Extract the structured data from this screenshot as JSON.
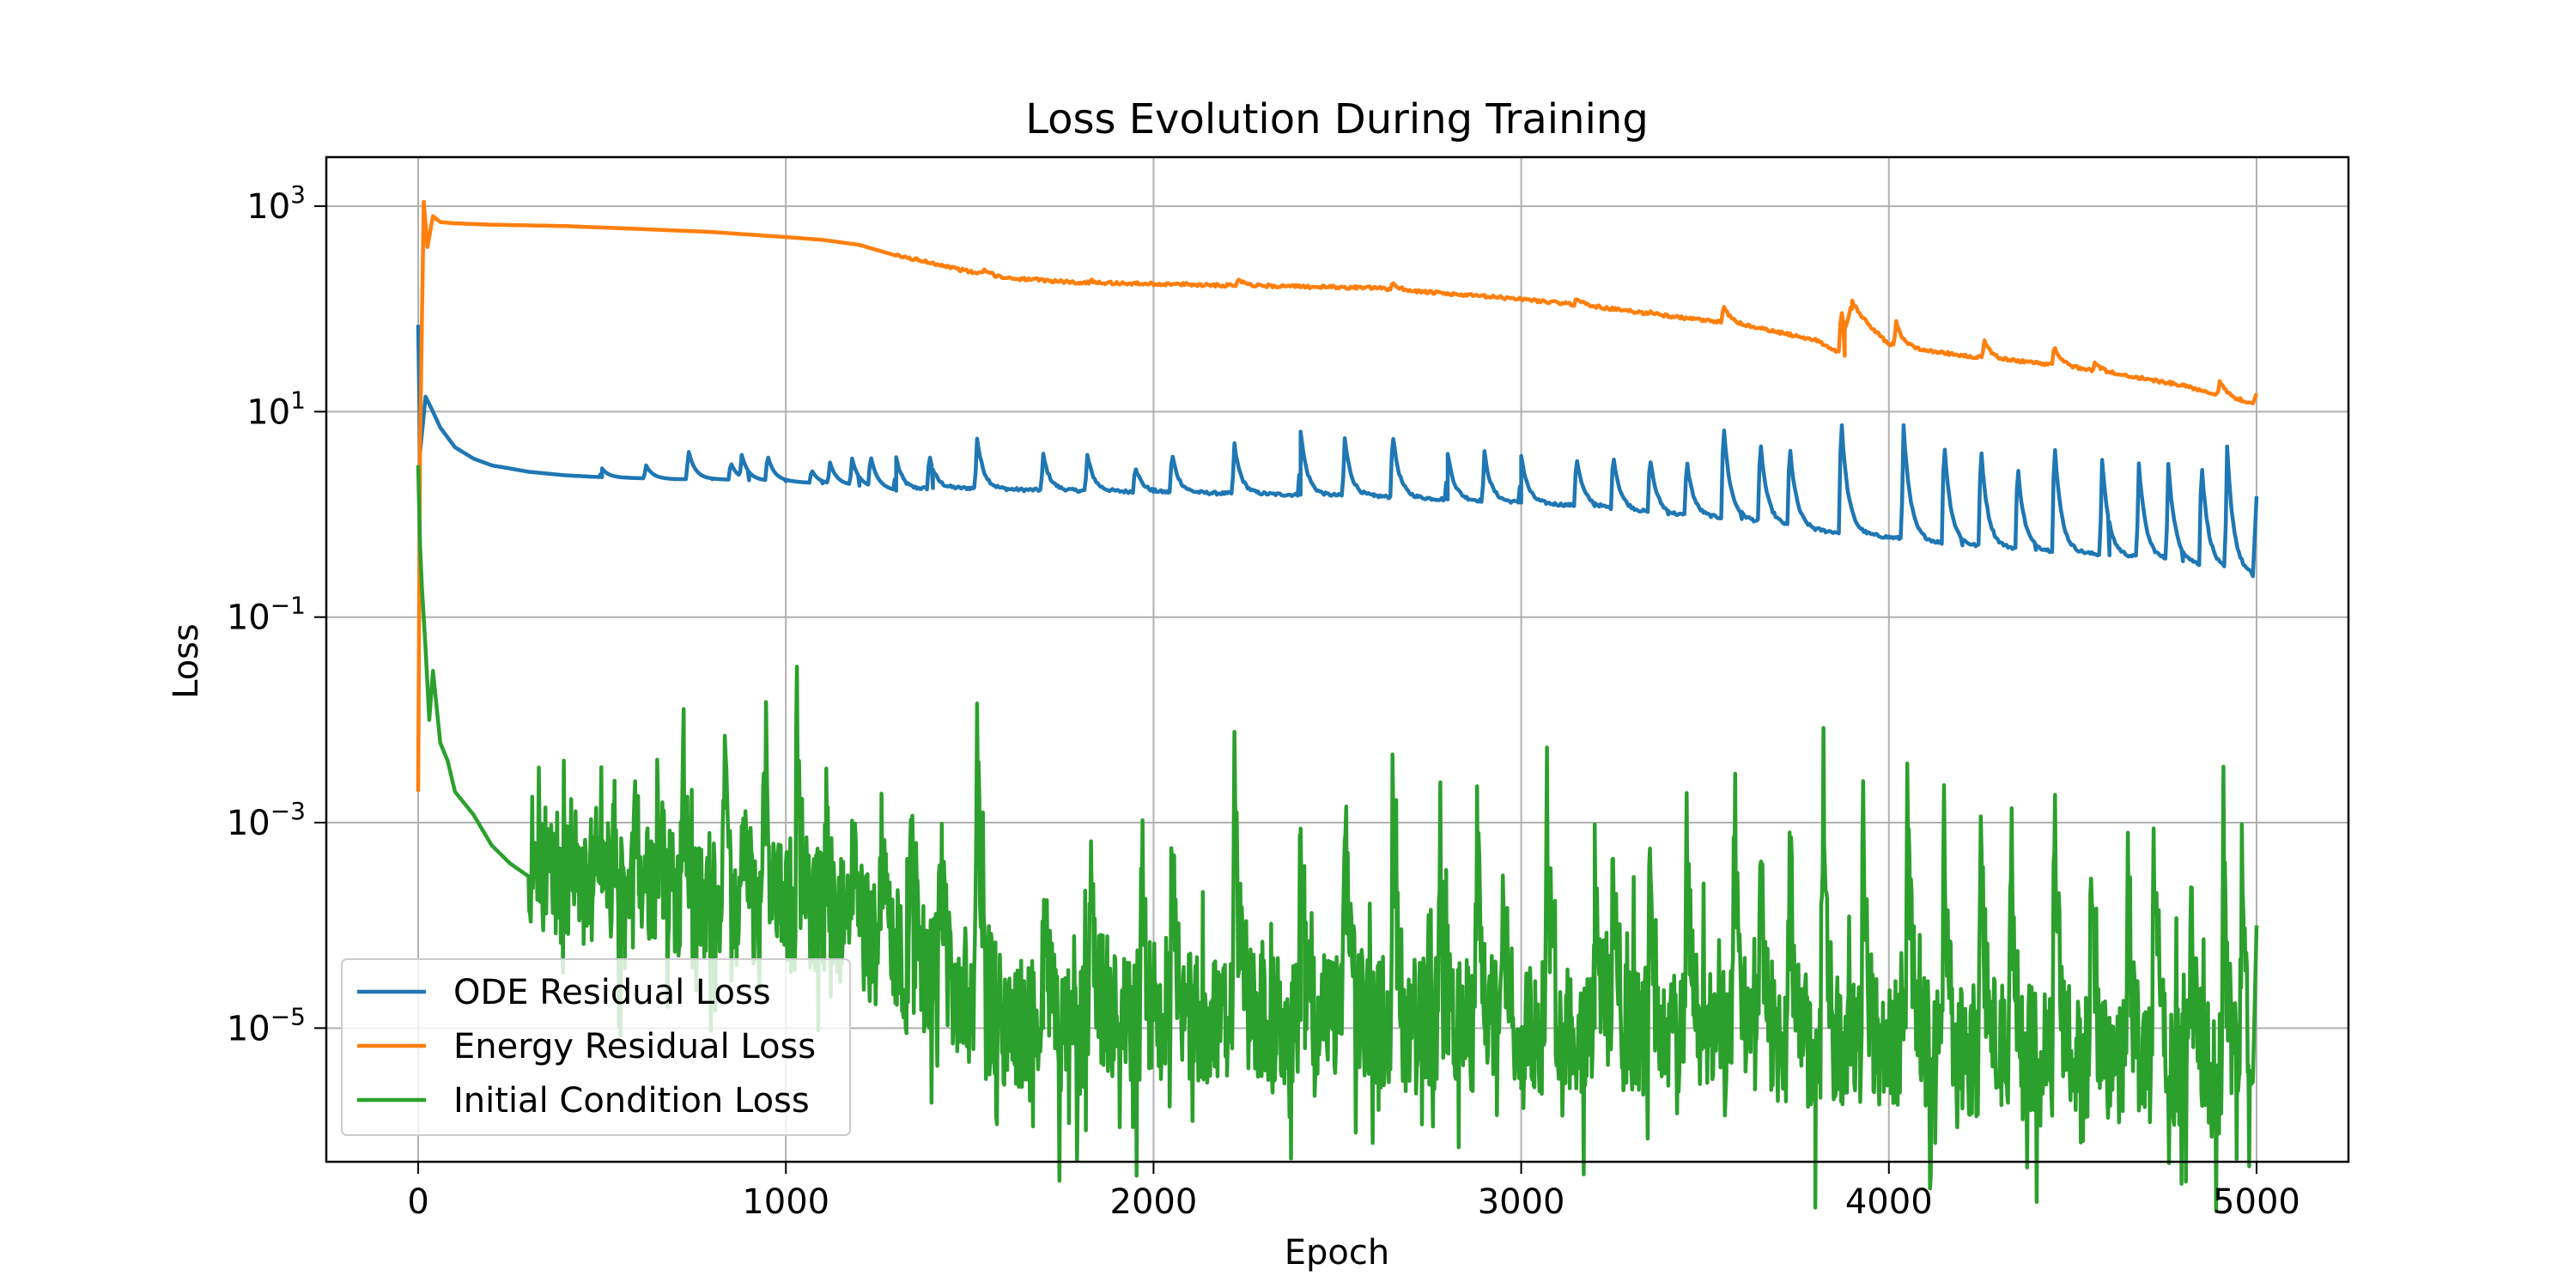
{
  "chart_data": {
    "type": "line",
    "title": "Loss Evolution During Training",
    "xlabel": "Epoch",
    "ylabel": "Loss",
    "xlim": [
      -250,
      5250
    ],
    "ylim": [
      5e-07,
      3000
    ],
    "yscale": "log",
    "grid": true,
    "legend_position": "lower-left",
    "x_ticks": [
      0,
      1000,
      2000,
      3000,
      4000,
      5000
    ],
    "x_tick_labels": [
      "0",
      "1000",
      "2000",
      "3000",
      "4000",
      "5000"
    ],
    "y_ticks": [
      1e-05,
      0.001,
      0.1,
      10,
      1000
    ],
    "y_tick_labels": [
      {
        "base": "10",
        "exp": "−5"
      },
      {
        "base": "10",
        "exp": "−3"
      },
      {
        "base": "10",
        "exp": "−1"
      },
      {
        "base": "10",
        "exp": "1"
      },
      {
        "base": "10",
        "exp": "3"
      }
    ],
    "series": [
      {
        "name": "ODE Residual Loss",
        "color": "#1f77b4",
        "x": [
          0,
          5,
          20,
          40,
          60,
          100,
          150,
          200,
          300,
          400,
          500,
          600,
          700,
          800,
          900,
          1000,
          1100,
          1200,
          1300,
          1400,
          1500,
          1600,
          1800,
          2000,
          2200,
          2400,
          2600,
          2800,
          3000,
          3200,
          3400,
          3600,
          3800,
          4000,
          4200,
          4400,
          4600,
          4800,
          4990,
          5000
        ],
        "y": [
          70,
          4,
          14,
          10,
          7,
          4.5,
          3.5,
          3.0,
          2.6,
          2.4,
          2.3,
          2.25,
          2.2,
          2.2,
          2.15,
          2.1,
          2.0,
          1.9,
          1.7,
          1.8,
          1.8,
          1.75,
          1.7,
          1.65,
          1.6,
          1.55,
          1.5,
          1.4,
          1.3,
          1.2,
          1.0,
          0.9,
          0.7,
          0.6,
          0.5,
          0.45,
          0.4,
          0.35,
          0.25,
          1.5
        ],
        "spikes": [
          [
            500,
            2.8
          ],
          [
            620,
            3.0
          ],
          [
            735,
            4.2
          ],
          [
            850,
            3.2
          ],
          [
            880,
            3.8
          ],
          [
            950,
            3.8
          ],
          [
            1070,
            2.7
          ],
          [
            1120,
            3.2
          ],
          [
            1180,
            3.5
          ],
          [
            1230,
            3.8
          ],
          [
            1300,
            3.6
          ],
          [
            1390,
            3.8
          ],
          [
            1520,
            5.5
          ],
          [
            1700,
            3.8
          ],
          [
            1820,
            3.8
          ],
          [
            1950,
            3.0
          ],
          [
            2050,
            4.0
          ],
          [
            2220,
            4.8
          ],
          [
            2400,
            6.5
          ],
          [
            2520,
            5.5
          ],
          [
            2650,
            6.5
          ],
          [
            2800,
            4.0
          ],
          [
            2900,
            4.0
          ],
          [
            3000,
            3.8
          ],
          [
            3150,
            3.8
          ],
          [
            3250,
            4.0
          ],
          [
            3350,
            3.8
          ],
          [
            3450,
            3.5
          ],
          [
            3550,
            8.0
          ],
          [
            3650,
            5.5
          ],
          [
            3730,
            5.0
          ],
          [
            3870,
            9.5
          ],
          [
            4040,
            7.5
          ],
          [
            4150,
            5.5
          ],
          [
            4250,
            5.0
          ],
          [
            4350,
            3.2
          ],
          [
            4450,
            5.5
          ],
          [
            4580,
            3.5
          ],
          [
            4680,
            3.2
          ],
          [
            4760,
            3.2
          ],
          [
            4850,
            3.5
          ],
          [
            4920,
            4.5
          ],
          [
            4990,
            1.8
          ]
        ]
      },
      {
        "name": "Energy Residual Loss",
        "color": "#ff7f0e",
        "x": [
          0,
          5,
          15,
          25,
          40,
          60,
          100,
          200,
          400,
          600,
          800,
          1000,
          1100,
          1200,
          1300,
          1400,
          1500,
          1600,
          1800,
          2000,
          2200,
          2400,
          2600,
          2800,
          3000,
          3200,
          3400,
          3600,
          3800,
          3880,
          3900,
          4000,
          4200,
          4400,
          4600,
          4800,
          4990,
          5000
        ],
        "y": [
          0.002,
          5,
          1100,
          400,
          800,
          700,
          680,
          660,
          640,
          600,
          560,
          500,
          470,
          420,
          330,
          280,
          230,
          200,
          180,
          175,
          170,
          165,
          160,
          140,
          125,
          105,
          85,
          70,
          50,
          35,
          100,
          45,
          35,
          30,
          24,
          18,
          12,
          15
        ],
        "spikes": [
          [
            1540,
            240
          ],
          [
            1830,
            190
          ],
          [
            2230,
            200
          ],
          [
            2650,
            180
          ],
          [
            3150,
            130
          ],
          [
            3350,
            95
          ],
          [
            3550,
            110
          ],
          [
            3870,
            100
          ],
          [
            4020,
            75
          ],
          [
            4260,
            50
          ],
          [
            4450,
            45
          ],
          [
            4560,
            30
          ],
          [
            4900,
            20
          ]
        ]
      },
      {
        "name": "Initial Condition Loss",
        "color": "#2ca02c",
        "x": [
          0,
          5,
          10,
          20,
          30,
          40,
          60,
          80,
          100,
          150,
          200,
          250,
          300,
          400,
          500,
          600,
          700,
          800,
          900,
          1000,
          1100,
          1200,
          1300,
          1400,
          1500,
          1600,
          1700,
          1800,
          1900,
          2000,
          2100,
          2200,
          2300,
          2400,
          2500,
          2600,
          2700,
          2800,
          2900,
          3000,
          3200,
          3400,
          3600,
          3800,
          4000,
          4200,
          4400,
          4600,
          4800,
          4990,
          5000
        ],
        "y": [
          3,
          0.5,
          0.2,
          0.05,
          0.01,
          0.03,
          0.006,
          0.004,
          0.002,
          0.0012,
          0.0006,
          0.0004,
          0.0003,
          0.00028,
          0.00025,
          0.0002,
          0.00018,
          0.00016,
          0.00015,
          0.00018,
          0.00012,
          8e-05,
          5e-05,
          3e-05,
          2e-05,
          1.2e-05,
          1e-05,
          1e-05,
          1.2e-05,
          1.2e-05,
          1.2e-05,
          1.2e-05,
          1.2e-05,
          1.2e-05,
          1.2e-05,
          1.2e-05,
          1.2e-05,
          1.1e-05,
          1e-05,
          1e-05,
          1e-05,
          9e-06,
          8e-06,
          7e-06,
          7e-06,
          6e-06,
          6e-06,
          5e-06,
          4e-06,
          3e-06,
          0.0001
        ],
        "spikes": [
          [
            350,
            0.0006
          ],
          [
            420,
            0.0008
          ],
          [
            480,
            0.001
          ],
          [
            530,
            0.0012
          ],
          [
            590,
            0.0015
          ],
          [
            650,
            0.0015
          ],
          [
            720,
            0.005
          ],
          [
            830,
            0.006
          ],
          [
            880,
            0.002
          ],
          [
            940,
            0.0015
          ],
          [
            1030,
            0.013
          ],
          [
            1110,
            0.001
          ],
          [
            1180,
            0.0007
          ],
          [
            1260,
            0.0018
          ],
          [
            1340,
            0.0006
          ],
          [
            1420,
            0.0006
          ],
          [
            1520,
            0.009
          ],
          [
            1700,
            0.0008
          ],
          [
            1830,
            0.0008
          ],
          [
            1970,
            0.0006
          ],
          [
            2050,
            0.0015
          ],
          [
            2220,
            0.0045
          ],
          [
            2400,
            0.0015
          ],
          [
            2520,
            0.0015
          ],
          [
            2650,
            0.0015
          ],
          [
            2780,
            0.0006
          ],
          [
            2880,
            0.0007
          ],
          [
            2950,
            0.0005
          ],
          [
            3070,
            0.0015
          ],
          [
            3200,
            0.0008
          ],
          [
            3250,
            0.0008
          ],
          [
            3350,
            0.0005
          ],
          [
            3450,
            0.0006
          ],
          [
            3580,
            0.0025
          ],
          [
            3650,
            0.0008
          ],
          [
            3730,
            0.0006
          ],
          [
            3820,
            0.0015
          ],
          [
            3930,
            0.0006
          ],
          [
            4050,
            0.0015
          ],
          [
            4150,
            0.0008
          ],
          [
            4250,
            0.0007
          ],
          [
            4330,
            0.0005
          ],
          [
            4450,
            0.0025
          ],
          [
            4550,
            0.0006
          ],
          [
            4650,
            0.0004
          ],
          [
            4720,
            0.0005
          ],
          [
            4820,
            0.0004
          ],
          [
            4910,
            0.001
          ],
          [
            4960,
            0.0005
          ]
        ]
      }
    ]
  }
}
